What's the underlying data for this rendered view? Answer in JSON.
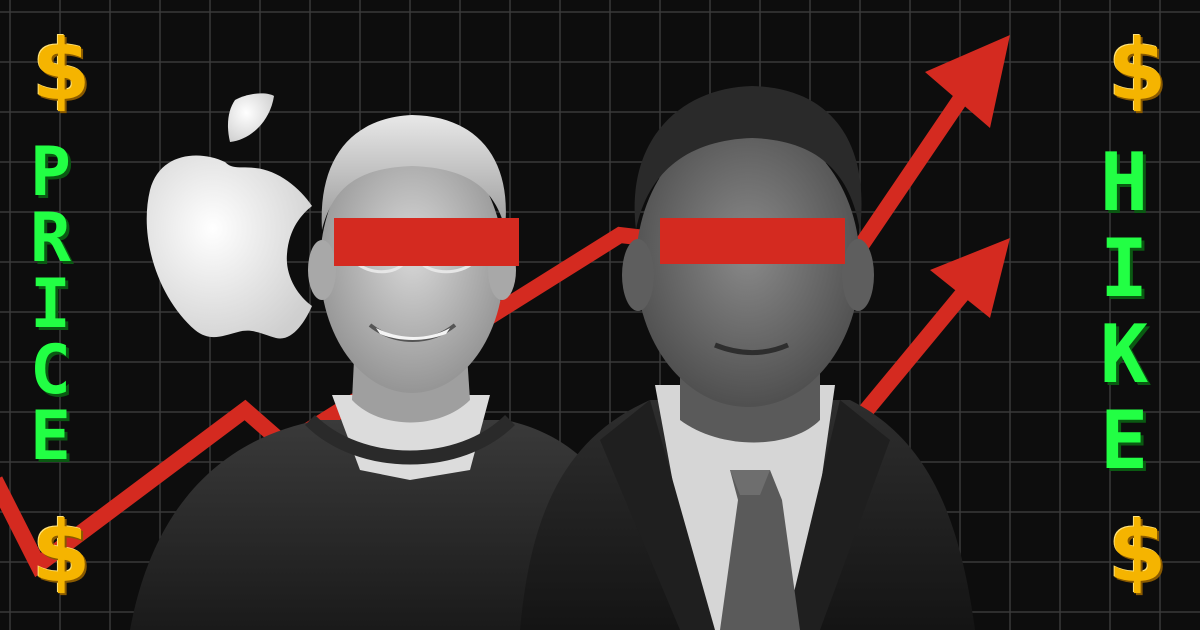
{
  "left_word": [
    "P",
    "R",
    "I",
    "C",
    "E"
  ],
  "right_word": [
    "H",
    "I",
    "K",
    "E"
  ],
  "dollar_symbol": "$",
  "colors": {
    "background": "#0d0d0d",
    "grid": "#3a3a3a",
    "text_green": "#22ff44",
    "dollar_gold": "#f5b400",
    "arrow_red": "#d42a20",
    "censor_bar_red": "#d42a20"
  },
  "icons": [
    "apple-logo-icon",
    "up-trend-arrow-icon"
  ]
}
